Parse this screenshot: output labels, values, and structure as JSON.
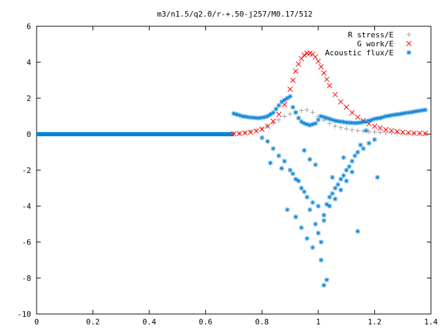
{
  "chart_data": {
    "type": "scatter",
    "title": "m3/n1.5/q2.0/r-+.50-j257/M0.17/512",
    "xlabel": "",
    "ylabel": "",
    "xlim": [
      0,
      1.4
    ],
    "ylim": [
      -10,
      6
    ],
    "grid": false,
    "legend_position": "top-right",
    "x_ticks": [
      "0",
      "0.2",
      "0.4",
      "0.6",
      "0.8",
      "1",
      "1.2",
      "1.4"
    ],
    "y_ticks": [
      "-10",
      "-8",
      "-6",
      "-4",
      "-2",
      "0",
      "2",
      "4",
      "6"
    ],
    "series": [
      {
        "name": "R stress/E",
        "marker": "plus",
        "color": "#a0a0a0",
        "x": [
          0.7,
          0.72,
          0.74,
          0.76,
          0.78,
          0.8,
          0.82,
          0.84,
          0.86,
          0.88,
          0.9,
          0.92,
          0.94,
          0.96,
          0.98,
          1.0,
          1.02,
          1.04,
          1.06,
          1.08,
          1.1,
          1.12,
          1.14,
          1.16,
          1.18,
          1.2,
          1.22,
          1.24,
          1.26,
          1.28,
          1.3,
          1.32,
          1.34,
          1.36,
          1.38
        ],
        "y": [
          0.02,
          0.04,
          0.08,
          0.14,
          0.22,
          0.32,
          0.45,
          0.62,
          0.8,
          0.98,
          1.12,
          1.25,
          1.32,
          1.35,
          1.22,
          0.98,
          0.78,
          0.6,
          0.45,
          0.36,
          0.3,
          0.24,
          0.2,
          0.17,
          0.14,
          0.12,
          0.1,
          0.08,
          0.07,
          0.06,
          0.05,
          0.04,
          0.04,
          0.03,
          0.03
        ]
      },
      {
        "name": "G work/E",
        "marker": "cross",
        "color": "#ff0000",
        "x": [
          0.7,
          0.72,
          0.74,
          0.76,
          0.78,
          0.8,
          0.82,
          0.84,
          0.86,
          0.88,
          0.9,
          0.91,
          0.92,
          0.93,
          0.94,
          0.95,
          0.96,
          0.97,
          0.98,
          0.99,
          1.0,
          1.01,
          1.02,
          1.03,
          1.04,
          1.06,
          1.08,
          1.1,
          1.12,
          1.14,
          1.16,
          1.18,
          1.2,
          1.22,
          1.24,
          1.26,
          1.28,
          1.3,
          1.32,
          1.34,
          1.36,
          1.38
        ],
        "y": [
          0.02,
          0.04,
          0.07,
          0.11,
          0.18,
          0.28,
          0.45,
          0.72,
          1.1,
          1.65,
          2.5,
          3.0,
          3.5,
          3.9,
          4.2,
          4.4,
          4.5,
          4.5,
          4.45,
          4.3,
          4.05,
          3.75,
          3.4,
          3.05,
          2.7,
          2.2,
          1.8,
          1.5,
          1.2,
          0.95,
          0.75,
          0.58,
          0.44,
          0.34,
          0.26,
          0.2,
          0.15,
          0.11,
          0.08,
          0.06,
          0.05,
          0.04
        ]
      },
      {
        "name": "Acoustic flux/E",
        "marker": "star",
        "color": "#0a84d8",
        "x": [
          0.7,
          0.71,
          0.72,
          0.73,
          0.74,
          0.75,
          0.76,
          0.77,
          0.78,
          0.79,
          0.8,
          0.81,
          0.82,
          0.83,
          0.84,
          0.85,
          0.86,
          0.87,
          0.88,
          0.89,
          0.9,
          0.91,
          0.92,
          0.93,
          0.94,
          0.95,
          0.96,
          0.97,
          0.98,
          0.99,
          1.0,
          1.01,
          1.02,
          1.03,
          1.04,
          1.05,
          1.06,
          1.07,
          1.08,
          1.09,
          1.1,
          1.11,
          1.12,
          1.13,
          1.14,
          1.15,
          1.16,
          1.17,
          1.18,
          1.19,
          1.2,
          1.21,
          1.22,
          1.23,
          1.24,
          1.25,
          1.26,
          1.27,
          1.28,
          1.29,
          1.3,
          1.31,
          1.32,
          1.33,
          1.34,
          1.35,
          1.36,
          1.37,
          1.38,
          0.8,
          0.82,
          0.84,
          0.86,
          0.88,
          0.9,
          0.92,
          0.94,
          0.96,
          0.98,
          1.0,
          1.02,
          1.04,
          1.06,
          1.08,
          1.1,
          1.12,
          1.14,
          1.16,
          1.18,
          1.2,
          0.83,
          0.87,
          0.91,
          0.93,
          0.95,
          0.97,
          0.99,
          1.01,
          1.03,
          1.05,
          1.07,
          1.09,
          1.11,
          1.13,
          1.15,
          0.89,
          0.92,
          0.94,
          0.96,
          0.98,
          1.0,
          1.02,
          1.04,
          1.06,
          1.08,
          1.1,
          1.12,
          1.14,
          1.01,
          1.02,
          1.03,
          0.95,
          0.97,
          0.99,
          1.05,
          1.09,
          1.17,
          1.21
        ],
        "y": [
          1.15,
          1.1,
          1.05,
          1.0,
          0.98,
          0.95,
          0.93,
          0.92,
          0.9,
          0.9,
          0.92,
          0.95,
          1.0,
          1.1,
          1.2,
          1.4,
          1.6,
          1.8,
          1.9,
          2.0,
          2.1,
          1.5,
          1.2,
          0.9,
          0.7,
          0.6,
          0.55,
          0.5,
          0.55,
          0.6,
          0.8,
          1.0,
          0.95,
          0.9,
          0.85,
          0.8,
          0.75,
          0.72,
          0.7,
          0.68,
          0.65,
          0.64,
          0.63,
          0.62,
          0.63,
          0.65,
          0.68,
          0.7,
          0.75,
          0.8,
          0.85,
          0.88,
          0.9,
          0.95,
          1.0,
          1.02,
          1.05,
          1.08,
          1.1,
          1.12,
          1.15,
          1.18,
          1.2,
          1.22,
          1.25,
          1.28,
          1.3,
          1.33,
          1.35,
          -0.2,
          -0.4,
          -0.8,
          -1.2,
          -1.5,
          -2.0,
          -2.5,
          -3.0,
          -3.5,
          -3.8,
          -4.0,
          -4.5,
          -3.5,
          -3.0,
          -2.5,
          -2.0,
          -1.5,
          -1.0,
          -0.8,
          -0.5,
          -0.3,
          -1.6,
          -1.9,
          -2.2,
          -2.6,
          -3.2,
          -4.2,
          -5.0,
          -6.0,
          -3.9,
          -3.3,
          -2.8,
          -2.3,
          -1.8,
          -1.2,
          -0.6,
          -4.2,
          -4.6,
          -5.2,
          -5.8,
          -6.3,
          -5.5,
          -4.8,
          -4.0,
          -3.6,
          -3.1,
          -2.6,
          -2.1,
          -5.4,
          -7.0,
          -8.4,
          -8.1,
          -0.9,
          -1.4,
          -1.7,
          -2.4,
          -1.3,
          0.2,
          -2.4
        ]
      }
    ],
    "baseline_series": "Acoustic flux/E",
    "baseline_x_range": [
      0,
      0.7
    ],
    "baseline_y": 0
  }
}
